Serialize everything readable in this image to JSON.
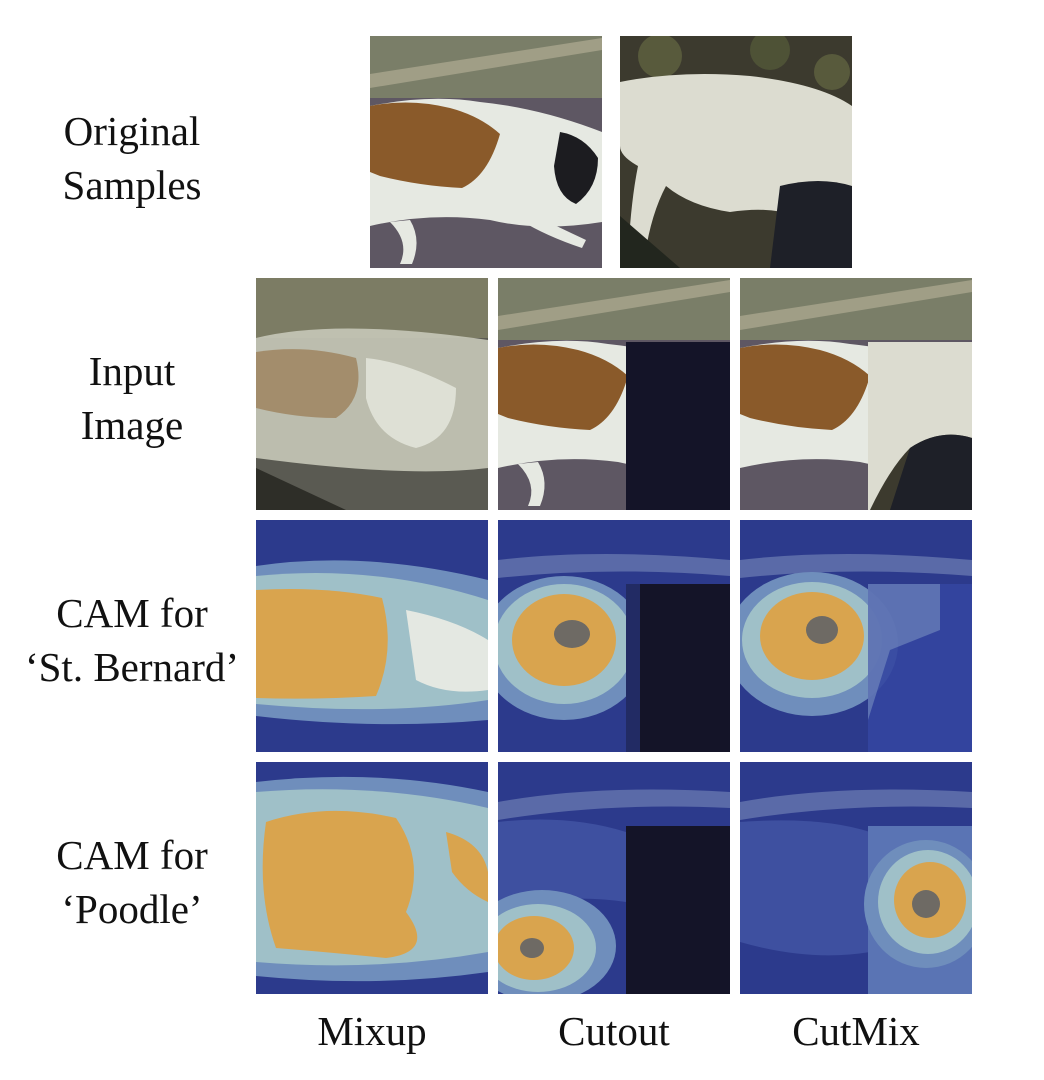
{
  "figure": {
    "row_labels": [
      {
        "line1": "Original",
        "line2": "Samples"
      },
      {
        "line1": "Input",
        "line2": "Image"
      },
      {
        "line1": "CAM for",
        "line2": "‘St. Bernard’"
      },
      {
        "line1": "CAM for",
        "line2": "‘Poodle’"
      }
    ],
    "column_labels": [
      "Mixup",
      "Cutout",
      "CutMix"
    ]
  },
  "colors": {
    "cam_background": "#2c3a8c",
    "cam_mid": "#9fc0c8",
    "cam_hot": "#d9a44e",
    "cam_peak": "#6e6a64",
    "cutout_fill": "#141428",
    "ground": "#5e5763",
    "st_bernard_brown": "#8a5a2a",
    "poodle_white": "#dcdcd0"
  }
}
